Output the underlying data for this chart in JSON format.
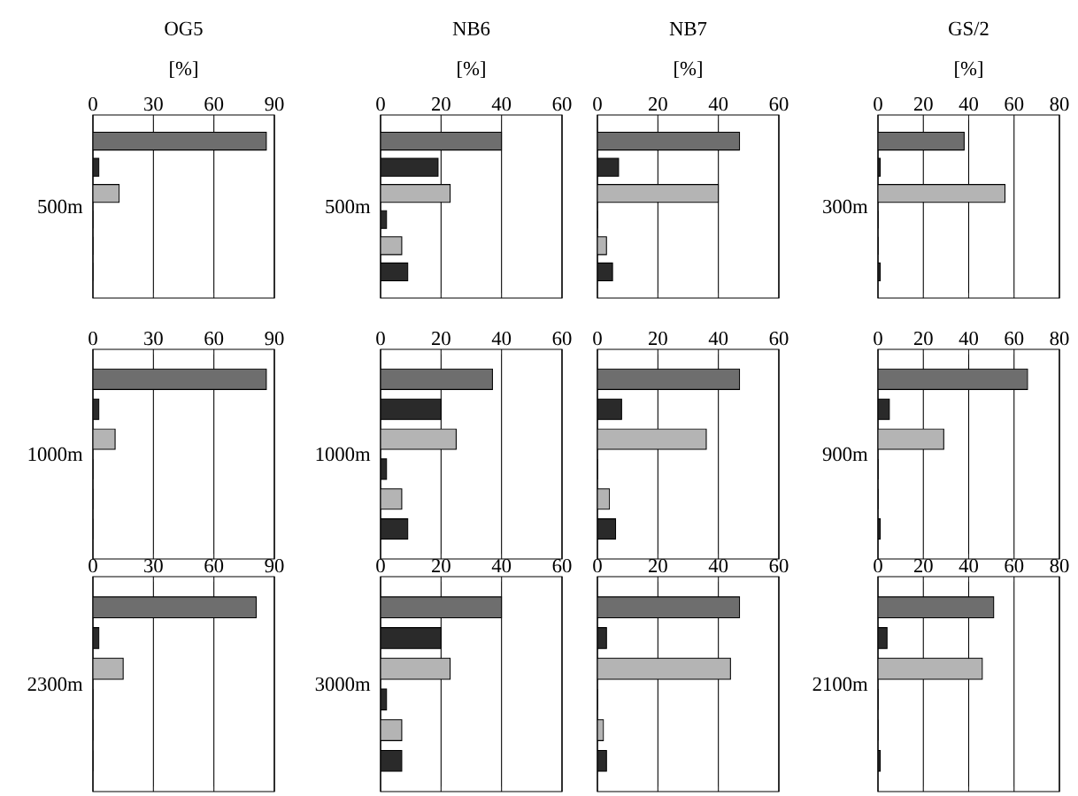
{
  "chart_data": [
    {
      "type": "bar",
      "orientation": "horizontal",
      "title": "OG5",
      "xlabel": "[%]",
      "ylabel": "500m",
      "categories": [
        null,
        null,
        null,
        null,
        null,
        null
      ],
      "values": [
        86,
        3,
        13,
        0,
        0,
        0
      ],
      "colors": [
        "#6e6e6e",
        "#2a2a2a",
        "#b4b4b4",
        "#2a2a2a",
        "#b4b4b4",
        "#2a2a2a"
      ],
      "xlim": [
        0,
        90
      ],
      "xticks": [
        0,
        30,
        60,
        90
      ],
      "grid": "x"
    },
    {
      "type": "bar",
      "orientation": "horizontal",
      "title": "NB6",
      "xlabel": "[%]",
      "ylabel": "500m",
      "categories": [
        null,
        null,
        null,
        null,
        null,
        null
      ],
      "values": [
        40,
        19,
        23,
        2,
        7,
        9
      ],
      "colors": [
        "#6e6e6e",
        "#2a2a2a",
        "#b4b4b4",
        "#2a2a2a",
        "#b4b4b4",
        "#2a2a2a"
      ],
      "xlim": [
        0,
        60
      ],
      "xticks": [
        0,
        20,
        40,
        60
      ],
      "grid": "x"
    },
    {
      "type": "bar",
      "orientation": "horizontal",
      "title": "NB7",
      "xlabel": "[%]",
      "categories": [
        null,
        null,
        null,
        null,
        null,
        null
      ],
      "values": [
        47,
        7,
        40,
        0,
        3,
        5
      ],
      "colors": [
        "#6e6e6e",
        "#2a2a2a",
        "#b4b4b4",
        "#2a2a2a",
        "#b4b4b4",
        "#2a2a2a"
      ],
      "xlim": [
        0,
        60
      ],
      "xticks": [
        0,
        20,
        40,
        60
      ],
      "grid": "x"
    },
    {
      "type": "bar",
      "orientation": "horizontal",
      "title": "GS/2",
      "xlabel": "[%]",
      "ylabel": "300m",
      "categories": [
        null,
        null,
        null,
        null,
        null,
        null
      ],
      "values": [
        38,
        1,
        56,
        0,
        0,
        1
      ],
      "colors": [
        "#6e6e6e",
        "#2a2a2a",
        "#b4b4b4",
        "#2a2a2a",
        "#b4b4b4",
        "#2a2a2a"
      ],
      "xlim": [
        0,
        80
      ],
      "xticks": [
        0,
        20,
        40,
        60,
        80
      ],
      "grid": "x"
    },
    {
      "type": "bar",
      "orientation": "horizontal",
      "ylabel": "1000m",
      "categories": [
        null,
        null,
        null,
        null,
        null,
        null
      ],
      "values": [
        86,
        3,
        11,
        0,
        0,
        0
      ],
      "colors": [
        "#6e6e6e",
        "#2a2a2a",
        "#b4b4b4",
        "#2a2a2a",
        "#b4b4b4",
        "#2a2a2a"
      ],
      "xlim": [
        0,
        90
      ],
      "xticks": [
        0,
        30,
        60,
        90
      ],
      "grid": "x"
    },
    {
      "type": "bar",
      "orientation": "horizontal",
      "ylabel": "1000m",
      "categories": [
        null,
        null,
        null,
        null,
        null,
        null
      ],
      "values": [
        37,
        20,
        25,
        2,
        7,
        9
      ],
      "colors": [
        "#6e6e6e",
        "#2a2a2a",
        "#b4b4b4",
        "#2a2a2a",
        "#b4b4b4",
        "#2a2a2a"
      ],
      "xlim": [
        0,
        60
      ],
      "xticks": [
        0,
        20,
        40,
        60
      ],
      "grid": "x"
    },
    {
      "type": "bar",
      "orientation": "horizontal",
      "categories": [
        null,
        null,
        null,
        null,
        null,
        null
      ],
      "values": [
        47,
        8,
        36,
        0,
        4,
        6
      ],
      "colors": [
        "#6e6e6e",
        "#2a2a2a",
        "#b4b4b4",
        "#2a2a2a",
        "#b4b4b4",
        "#2a2a2a"
      ],
      "xlim": [
        0,
        60
      ],
      "xticks": [
        0,
        20,
        40,
        60
      ],
      "grid": "x"
    },
    {
      "type": "bar",
      "orientation": "horizontal",
      "ylabel": "900m",
      "categories": [
        null,
        null,
        null,
        null,
        null,
        null
      ],
      "values": [
        66,
        5,
        29,
        0,
        0,
        1
      ],
      "colors": [
        "#6e6e6e",
        "#2a2a2a",
        "#b4b4b4",
        "#2a2a2a",
        "#b4b4b4",
        "#2a2a2a"
      ],
      "xlim": [
        0,
        80
      ],
      "xticks": [
        0,
        20,
        40,
        60,
        80
      ],
      "grid": "x"
    },
    {
      "type": "bar",
      "orientation": "horizontal",
      "ylabel": "2300m",
      "categories": [
        null,
        null,
        null,
        null,
        null,
        null
      ],
      "values": [
        81,
        3,
        15,
        0,
        0,
        0
      ],
      "colors": [
        "#6e6e6e",
        "#2a2a2a",
        "#b4b4b4",
        "#2a2a2a",
        "#b4b4b4",
        "#2a2a2a"
      ],
      "xlim": [
        0,
        90
      ],
      "xticks": [
        0,
        30,
        60,
        90
      ],
      "grid": "x"
    },
    {
      "type": "bar",
      "orientation": "horizontal",
      "ylabel": "3000m",
      "categories": [
        null,
        null,
        null,
        null,
        null,
        null
      ],
      "values": [
        40,
        20,
        23,
        2,
        7,
        7
      ],
      "colors": [
        "#6e6e6e",
        "#2a2a2a",
        "#b4b4b4",
        "#2a2a2a",
        "#b4b4b4",
        "#2a2a2a"
      ],
      "xlim": [
        0,
        60
      ],
      "xticks": [
        0,
        20,
        40,
        60
      ],
      "grid": "x"
    },
    {
      "type": "bar",
      "orientation": "horizontal",
      "categories": [
        null,
        null,
        null,
        null,
        null,
        null
      ],
      "values": [
        47,
        3,
        44,
        0,
        2,
        3
      ],
      "colors": [
        "#6e6e6e",
        "#2a2a2a",
        "#b4b4b4",
        "#2a2a2a",
        "#b4b4b4",
        "#2a2a2a"
      ],
      "xlim": [
        0,
        60
      ],
      "xticks": [
        0,
        20,
        40,
        60
      ],
      "grid": "x"
    },
    {
      "type": "bar",
      "orientation": "horizontal",
      "ylabel": "2100m",
      "categories": [
        null,
        null,
        null,
        null,
        null,
        null
      ],
      "values": [
        51,
        4,
        46,
        0,
        0,
        1
      ],
      "colors": [
        "#6e6e6e",
        "#2a2a2a",
        "#b4b4b4",
        "#2a2a2a",
        "#b4b4b4",
        "#2a2a2a"
      ],
      "xlim": [
        0,
        80
      ],
      "xticks": [
        0,
        20,
        40,
        60,
        80
      ],
      "grid": "x"
    }
  ]
}
